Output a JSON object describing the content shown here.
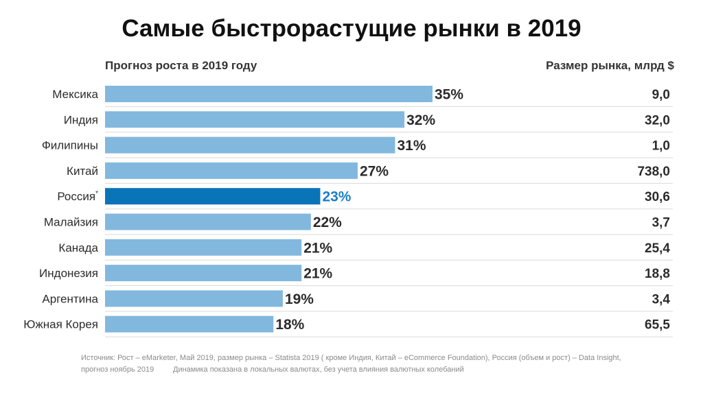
{
  "header": {
    "title": "Самые быстрорастущие рынки в 2019",
    "left_subtitle": "Прогноз роста в 2019 году",
    "right_subtitle": "Размер рынка, млрд $"
  },
  "colors": {
    "bar": "#82b8de",
    "highlight_bar": "#0a74b9",
    "highlight_text": "#1a7fc4",
    "label_text": "#2b2b2b",
    "divider": "#d9d9d9"
  },
  "chart_data": {
    "type": "bar",
    "orientation": "horizontal",
    "categories": [
      "Мексика",
      "Индия",
      "Филипины",
      "Китай",
      "Россия",
      "Малайзия",
      "Канада",
      "Индонезия",
      "Аргентина",
      "Южная Корея"
    ],
    "category_suffixes": [
      "",
      "",
      "",
      "",
      "*",
      "",
      "",
      "",
      "",
      ""
    ],
    "values": [
      35,
      32,
      31,
      27,
      23,
      22,
      21,
      21,
      19,
      18
    ],
    "value_labels": [
      "35%",
      "32%",
      "31%",
      "27%",
      "23%",
      "22%",
      "21%",
      "21%",
      "19%",
      "18%"
    ],
    "market_size": [
      "9,0",
      "32,0",
      "1,0",
      "738,0",
      "30,6",
      "3,7",
      "25,4",
      "18,8",
      "3,4",
      "65,5"
    ],
    "highlight_index": 4,
    "xlim": [
      0,
      35
    ],
    "grid": false,
    "legend": "none"
  },
  "footnotes": {
    "line1": "Источник: Рост – eMarketer, Май 2019, размер рынка – Statista 2019 ( кроме Индия, Китай – eCommerce Foundation), Россия (объем и рост)  – Data Insight,",
    "line2": "прогноз ноябрь 2019",
    "line3": "Динамика показана в локальных валютах, без учета влияния валютных колебаний"
  }
}
